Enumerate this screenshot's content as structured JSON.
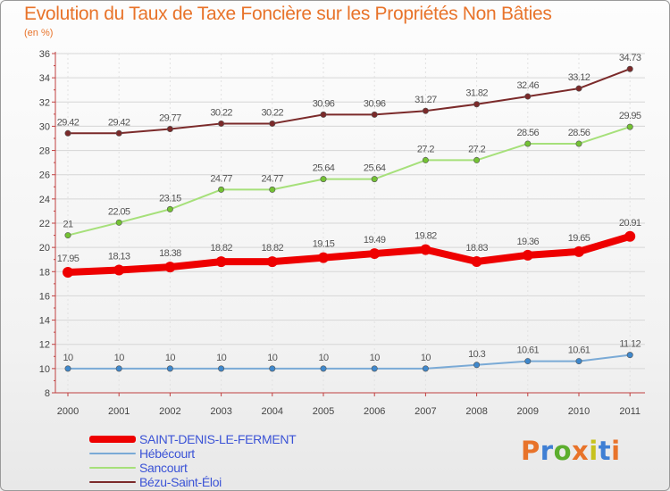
{
  "header": {
    "title": "Evolution du Taux de Taxe Foncière sur les Propriétés Non Bâties",
    "unit": "(en %)"
  },
  "logo": {
    "text": "Proxiti",
    "colors": [
      "#e8732a",
      "#3f7fd4",
      "#5cae2e",
      "#e8732a",
      "#c7c21d",
      "#3f7fd4",
      "#e8732a"
    ]
  },
  "chart_data": {
    "type": "line",
    "title": "Evolution du Taux de Taxe Foncière sur les Propriétés Non Bâties",
    "ylabel": "(en %)",
    "xlabel": "",
    "categories": [
      "2000",
      "2001",
      "2002",
      "2003",
      "2004",
      "2005",
      "2006",
      "2007",
      "2008",
      "2009",
      "2010",
      "2011"
    ],
    "ylim": [
      8,
      36
    ],
    "yticks": [
      8,
      10,
      12,
      14,
      16,
      18,
      20,
      22,
      24,
      26,
      28,
      30,
      32,
      34,
      36
    ],
    "grid": true,
    "series": [
      {
        "name": "Bézu-Saint-Éloi",
        "color": "#7b2a2a",
        "values": [
          29.42,
          29.42,
          29.77,
          30.22,
          30.22,
          30.96,
          30.96,
          31.27,
          31.82,
          32.46,
          33.12,
          34.73
        ],
        "labels": [
          "29.42",
          "29.42",
          "29.77",
          "30.22",
          "30.22",
          "30.96",
          "30.96",
          "31.27",
          "31.82",
          "32.46",
          "33.12",
          "34.73"
        ]
      },
      {
        "name": "Sancourt",
        "color": "#a6e07a",
        "marker": "#74c234",
        "values": [
          21,
          22.05,
          23.15,
          24.77,
          24.77,
          25.64,
          25.64,
          27.2,
          27.2,
          28.56,
          28.56,
          29.95
        ],
        "labels": [
          "21",
          "22.05",
          "23.15",
          "24.77",
          "24.77",
          "25.64",
          "25.64",
          "27.2",
          "27.2",
          "28.56",
          "28.56",
          "29.95"
        ]
      },
      {
        "name": "SAINT-DENIS-LE-FERMENT",
        "color": "#ee0000",
        "values": [
          17.95,
          18.13,
          18.38,
          18.82,
          18.82,
          19.15,
          19.49,
          19.82,
          18.83,
          19.36,
          19.65,
          20.91
        ],
        "labels": [
          "17.95",
          "18.13",
          "18.38",
          "18.82",
          "18.82",
          "19.15",
          "19.49",
          "19.82",
          "18.83",
          "19.36",
          "19.65",
          "20.91"
        ]
      },
      {
        "name": "Hébécourt",
        "color": "#7aaad6",
        "marker": "#3f88cc",
        "values": [
          10,
          10,
          10,
          10,
          10,
          10,
          10,
          10,
          10.3,
          10.61,
          10.61,
          11.12
        ],
        "labels": [
          "10",
          "10",
          "10",
          "10",
          "10",
          "10",
          "10",
          "10",
          "10.3",
          "10.61",
          "10.61",
          "11.12"
        ]
      }
    ],
    "legend": [
      {
        "name": "SAINT-DENIS-LE-FERMENT",
        "color": "#ee0000"
      },
      {
        "name": "Hébécourt",
        "color": "#7aaad6"
      },
      {
        "name": "Sancourt",
        "color": "#a6e07a"
      },
      {
        "name": "Bézu-Saint-Éloi",
        "color": "#7b2a2a"
      }
    ],
    "legend_position": "bottom-left"
  }
}
